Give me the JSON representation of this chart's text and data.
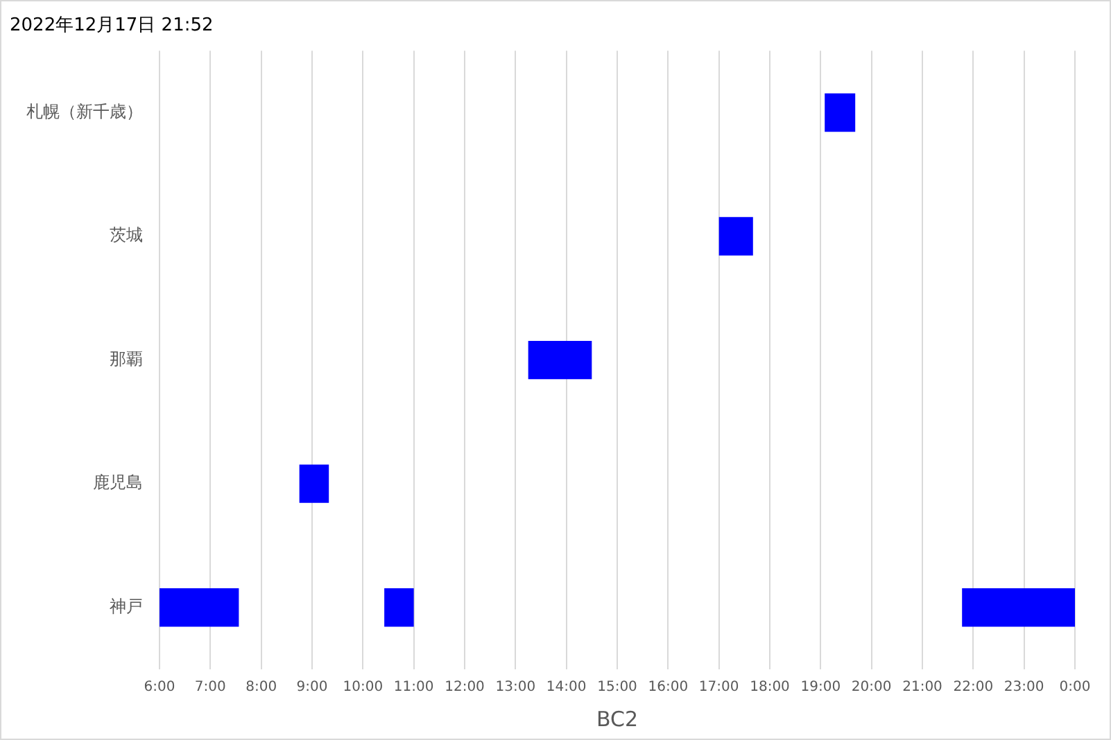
{
  "chart_data": {
    "type": "bar",
    "orientation": "horizontal",
    "title": "2022年12月17日 21:52",
    "xlabel": "BC2",
    "categories": [
      "札幌（新千歳）",
      "茨城",
      "那覇",
      "鹿児島",
      "神戸"
    ],
    "series": [
      {
        "color": "#0000ff",
        "base": [
          19.08,
          17,
          13.25,
          8.75,
          6
        ],
        "values": [
          0.6,
          0.67,
          1.25,
          0.58,
          1.56
        ]
      },
      {
        "color": "#0000ff",
        "base": [
          null,
          null,
          null,
          null,
          10.42
        ],
        "values": [
          null,
          null,
          null,
          null,
          0.58
        ]
      },
      {
        "color": "#0000ff",
        "base": [
          null,
          null,
          null,
          null,
          21.78
        ],
        "values": [
          null,
          null,
          null,
          null,
          2.22
        ]
      }
    ],
    "xlim": [
      6,
      24
    ],
    "xticks": [
      {
        "value": 6,
        "label": "6:00"
      },
      {
        "value": 7,
        "label": "7:00"
      },
      {
        "value": 8,
        "label": "8:00"
      },
      {
        "value": 9,
        "label": "9:00"
      },
      {
        "value": 10,
        "label": "10:00"
      },
      {
        "value": 11,
        "label": "11:00"
      },
      {
        "value": 12,
        "label": "12:00"
      },
      {
        "value": 13,
        "label": "13:00"
      },
      {
        "value": 14,
        "label": "14:00"
      },
      {
        "value": 15,
        "label": "15:00"
      },
      {
        "value": 16,
        "label": "16:00"
      },
      {
        "value": 17,
        "label": "17:00"
      },
      {
        "value": 18,
        "label": "18:00"
      },
      {
        "value": 19,
        "label": "19:00"
      },
      {
        "value": 20,
        "label": "20:00"
      },
      {
        "value": 21,
        "label": "21:00"
      },
      {
        "value": 22,
        "label": "22:00"
      },
      {
        "value": 23,
        "label": "23:00"
      },
      {
        "value": 24,
        "label": "0:00"
      }
    ],
    "grid": "x",
    "legend": false
  }
}
